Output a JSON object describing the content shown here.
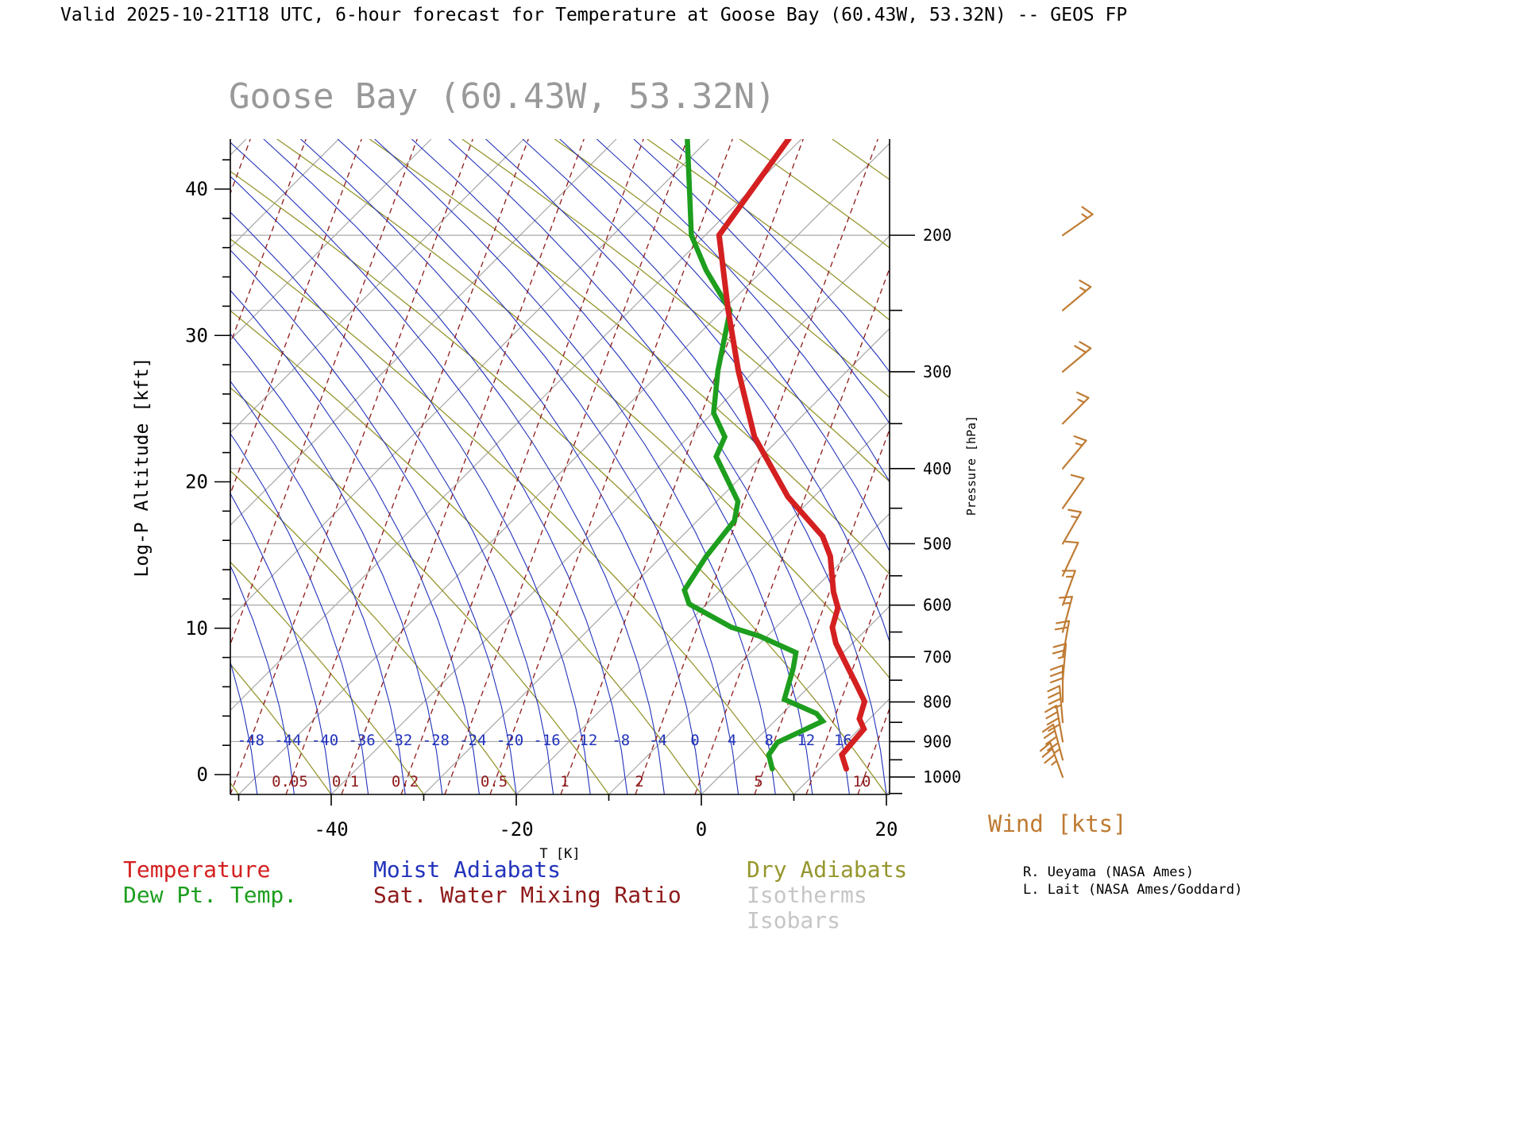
{
  "page": {
    "bg": "#ffffff",
    "header_title": "Valid 2025-10-21T18 UTC, 6-hour forecast for Temperature at Goose Bay (60.43W, 53.32N) -- GEOS FP",
    "chart_title": "Goose Bay (60.43W, 53.32N)"
  },
  "colors": {
    "temperature": "#d42020",
    "dewpoint": "#1e9e1e",
    "moist_adiabat": "#2233bb",
    "mixing_ratio": "#8f1a1a",
    "dry_adiabat": "#96962e",
    "isotherm": "#a8a8a8",
    "isobar": "#a8a8a8",
    "wind": "#bf7b33",
    "title_gray": "#999999",
    "legend_muted": "#c6c6c6",
    "axis": "#000000"
  },
  "legend": {
    "temperature": "Temperature",
    "dewpoint": "Dew Pt. Temp.",
    "moist": "Moist Adiabats",
    "mixing": "Sat. Water Mixing Ratio",
    "dry": "Dry Adiabats",
    "isotherms": "Isotherms",
    "isobars": "Isobars"
  },
  "wind_title": "Wind [kts]",
  "credits": [
    "R. Ueyama (NASA Ames)",
    "L. Lait (NASA Ames/Goddard)"
  ],
  "chart_data": {
    "type": "skew-t-log-p",
    "title": "Goose Bay (60.43W, 53.32N)",
    "x_axis_label": "T [K]",
    "x_ticks": [
      -40,
      -20,
      0,
      20
    ],
    "y_axis_left_label": "Log-P Altitude [kft]",
    "altitude_ticks_kft": [
      0,
      10,
      20,
      30,
      40
    ],
    "y_axis_right_label": "Pressure [hPa]",
    "pressure_ticks_labeled": [
      200,
      300,
      400,
      500,
      600,
      700,
      800,
      900,
      1000
    ],
    "pressure_ticks_minor": [
      250,
      350,
      450,
      550,
      650,
      750,
      850,
      950,
      1050
    ],
    "isobar_values_hPa": [
      200,
      250,
      300,
      350,
      400,
      500,
      600,
      700,
      800,
      900,
      1000
    ],
    "isotherm_range": [
      -120,
      30,
      10
    ],
    "moist_adiabat_labels": [
      -48,
      -44,
      -40,
      -36,
      -32,
      -28,
      -24,
      -20,
      -16,
      -12,
      -8,
      -4,
      0,
      4,
      8,
      12,
      16
    ],
    "mixing_ratio_labels": [
      0.05,
      0.1,
      0.2,
      0.5,
      1,
      2,
      5,
      10
    ],
    "temperature_profile": {
      "pressure_hPa": [
        150,
        200,
        250,
        299,
        364,
        435,
        489,
        519,
        577,
        605,
        641,
        672,
        705,
        760,
        799,
        841,
        867,
        936,
        976
      ],
      "temp_C": [
        -61.4,
        -58.5,
        -49.4,
        -41.8,
        -32.9,
        -22.8,
        -14.8,
        -11.8,
        -7.6,
        -5.4,
        -3.9,
        -1.8,
        0.8,
        4.9,
        7.6,
        8.9,
        10.5,
        10.9,
        12.9
      ]
    },
    "dewpoint_profile": {
      "pressure_hPa": [
        150,
        179,
        200,
        222,
        250,
        299,
        339,
        364,
        386,
        441,
        467,
        519,
        574,
        598,
        641,
        658,
        691,
        724,
        794,
        828,
        847,
        902,
        936,
        976
      ],
      "temp_C": [
        -72.4,
        -65.7,
        -61.5,
        -56.1,
        -49.2,
        -44.0,
        -39.9,
        -36.1,
        -34.9,
        -27.7,
        -26.0,
        -25.2,
        -23.9,
        -21.9,
        -14.8,
        -10.8,
        -5.1,
        -3.7,
        -1.3,
        3.7,
        5.2,
        2.6,
        3.0,
        4.9
      ]
    },
    "wind_levels": [
      {
        "pressure_hPa": 200,
        "speed_kts": 15,
        "dir_deg": 55
      },
      {
        "pressure_hPa": 250,
        "speed_kts": 15,
        "dir_deg": 50
      },
      {
        "pressure_hPa": 300,
        "speed_kts": 20,
        "dir_deg": 50
      },
      {
        "pressure_hPa": 350,
        "speed_kts": 15,
        "dir_deg": 45
      },
      {
        "pressure_hPa": 400,
        "speed_kts": 15,
        "dir_deg": 40
      },
      {
        "pressure_hPa": 450,
        "speed_kts": 10,
        "dir_deg": 35
      },
      {
        "pressure_hPa": 500,
        "speed_kts": 15,
        "dir_deg": 30
      },
      {
        "pressure_hPa": 550,
        "speed_kts": 10,
        "dir_deg": 25
      },
      {
        "pressure_hPa": 600,
        "speed_kts": 15,
        "dir_deg": 20
      },
      {
        "pressure_hPa": 650,
        "speed_kts": 15,
        "dir_deg": 15
      },
      {
        "pressure_hPa": 700,
        "speed_kts": 20,
        "dir_deg": 10
      },
      {
        "pressure_hPa": 750,
        "speed_kts": 25,
        "dir_deg": 5
      },
      {
        "pressure_hPa": 800,
        "speed_kts": 30,
        "dir_deg": 0
      },
      {
        "pressure_hPa": 850,
        "speed_kts": 35,
        "dir_deg": 355
      },
      {
        "pressure_hPa": 900,
        "speed_kts": 40,
        "dir_deg": 350
      },
      {
        "pressure_hPa": 950,
        "speed_kts": 45,
        "dir_deg": 345
      },
      {
        "pressure_hPa": 1000,
        "speed_kts": 35,
        "dir_deg": 340
      }
    ]
  }
}
